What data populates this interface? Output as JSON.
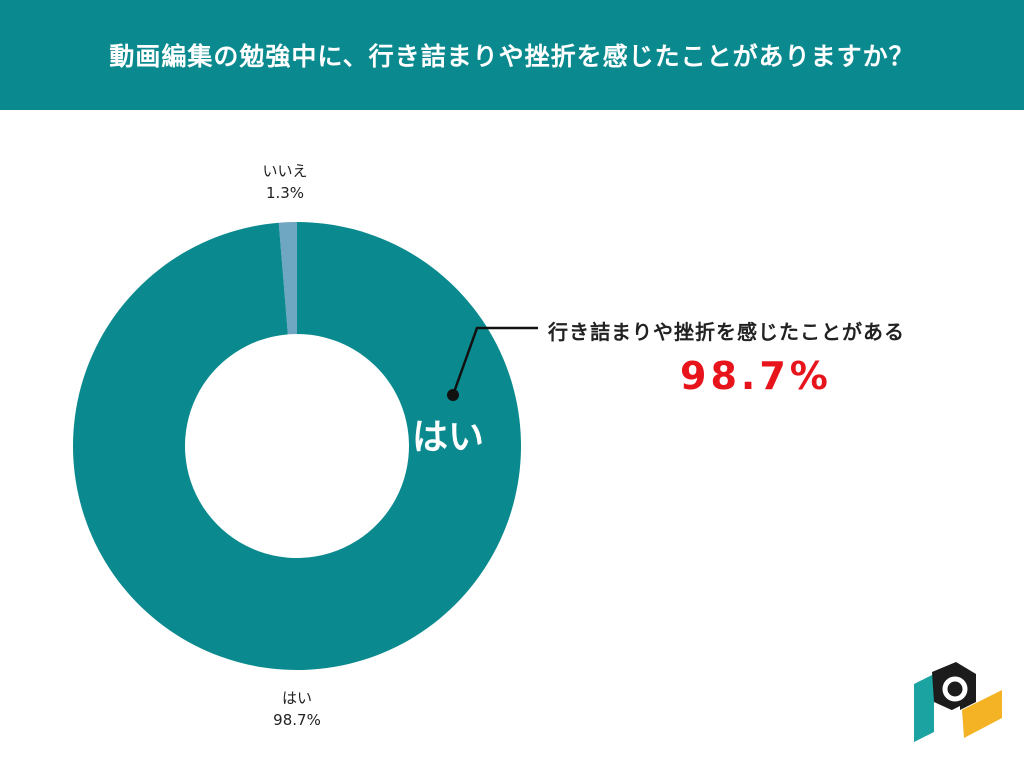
{
  "colors": {
    "header_bg": "#0a8a8e",
    "slice_yes": "#0a8a8e",
    "slice_no": "#6fa6c2",
    "highlight": "#e8141c",
    "logo_teal": "#1aa3a0",
    "logo_dark": "#1c1c1c",
    "logo_yellow": "#f4b324"
  },
  "header": {
    "title": "動画編集の勉強中に、行き詰まりや挫折を感じたことがありますか？"
  },
  "callout": {
    "text": "行き詰まりや挫折を感じたことがある",
    "value": "98.7%"
  },
  "chart_data": {
    "type": "pie",
    "title": "動画編集の勉強中に、行き詰まりや挫折を感じたことがありますか？",
    "donut": true,
    "slices": [
      {
        "label": "はい",
        "value": 98.7,
        "display": "98.7%",
        "color": "#0a8a8e"
      },
      {
        "label": "いいえ",
        "value": 1.3,
        "display": "1.3%",
        "color": "#6fa6c2"
      }
    ],
    "inside_label": "はい"
  },
  "logo": {
    "icon": "company-logo-icon"
  }
}
